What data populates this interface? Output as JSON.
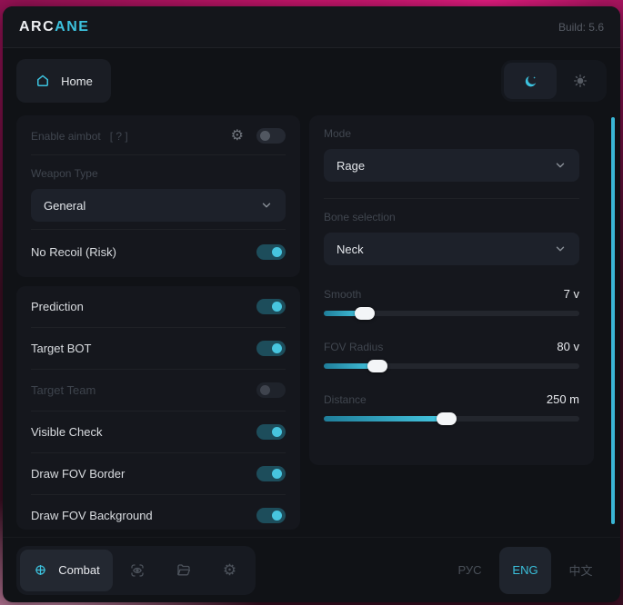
{
  "header": {
    "brand_prefix": "ARC",
    "brand_suffix": "ANE",
    "build": "Build: 5.6"
  },
  "nav": {
    "home_label": "Home"
  },
  "left_panel": {
    "aimbot": {
      "label": "Enable aimbot",
      "help": "[ ? ]",
      "enabled": false
    },
    "weapon_type_label": "Weapon Type",
    "weapon_type_value": "General",
    "no_recoil": {
      "label": "No Recoil (Risk)",
      "on": true
    },
    "toggles": [
      {
        "label": "Prediction",
        "on": true,
        "dim": false
      },
      {
        "label": "Target BOT",
        "on": true,
        "dim": false
      },
      {
        "label": "Target Team",
        "on": false,
        "dim": true
      },
      {
        "label": "Visible Check",
        "on": true,
        "dim": false
      },
      {
        "label": "Draw FOV Border",
        "on": true,
        "dim": false
      },
      {
        "label": "Draw FOV Background",
        "on": true,
        "dim": false
      }
    ]
  },
  "right_panel": {
    "mode_label": "Mode",
    "mode_value": "Rage",
    "bone_label": "Bone selection",
    "bone_value": "Neck",
    "sliders": [
      {
        "label": "Smooth",
        "value": "7 v",
        "percent": 16
      },
      {
        "label": "FOV Radius",
        "value": "80 v",
        "percent": 21
      },
      {
        "label": "Distance",
        "value": "250 m",
        "percent": 48
      }
    ]
  },
  "footer": {
    "combat_label": "Combat",
    "icon_tabs": [
      "visuals-eye",
      "folder",
      "settings-gear"
    ],
    "languages": [
      {
        "label": "РУС",
        "active": false
      },
      {
        "label": "ENG",
        "active": true
      },
      {
        "label": "中文",
        "active": false
      }
    ]
  },
  "colors": {
    "accent": "#3cc2de",
    "toggle_on_track": "#1d4d5b",
    "toggle_on_knob": "#47c5df",
    "window_bg": "#101216",
    "card_bg": "#15171d",
    "scrollbar": "#39b7d6"
  }
}
